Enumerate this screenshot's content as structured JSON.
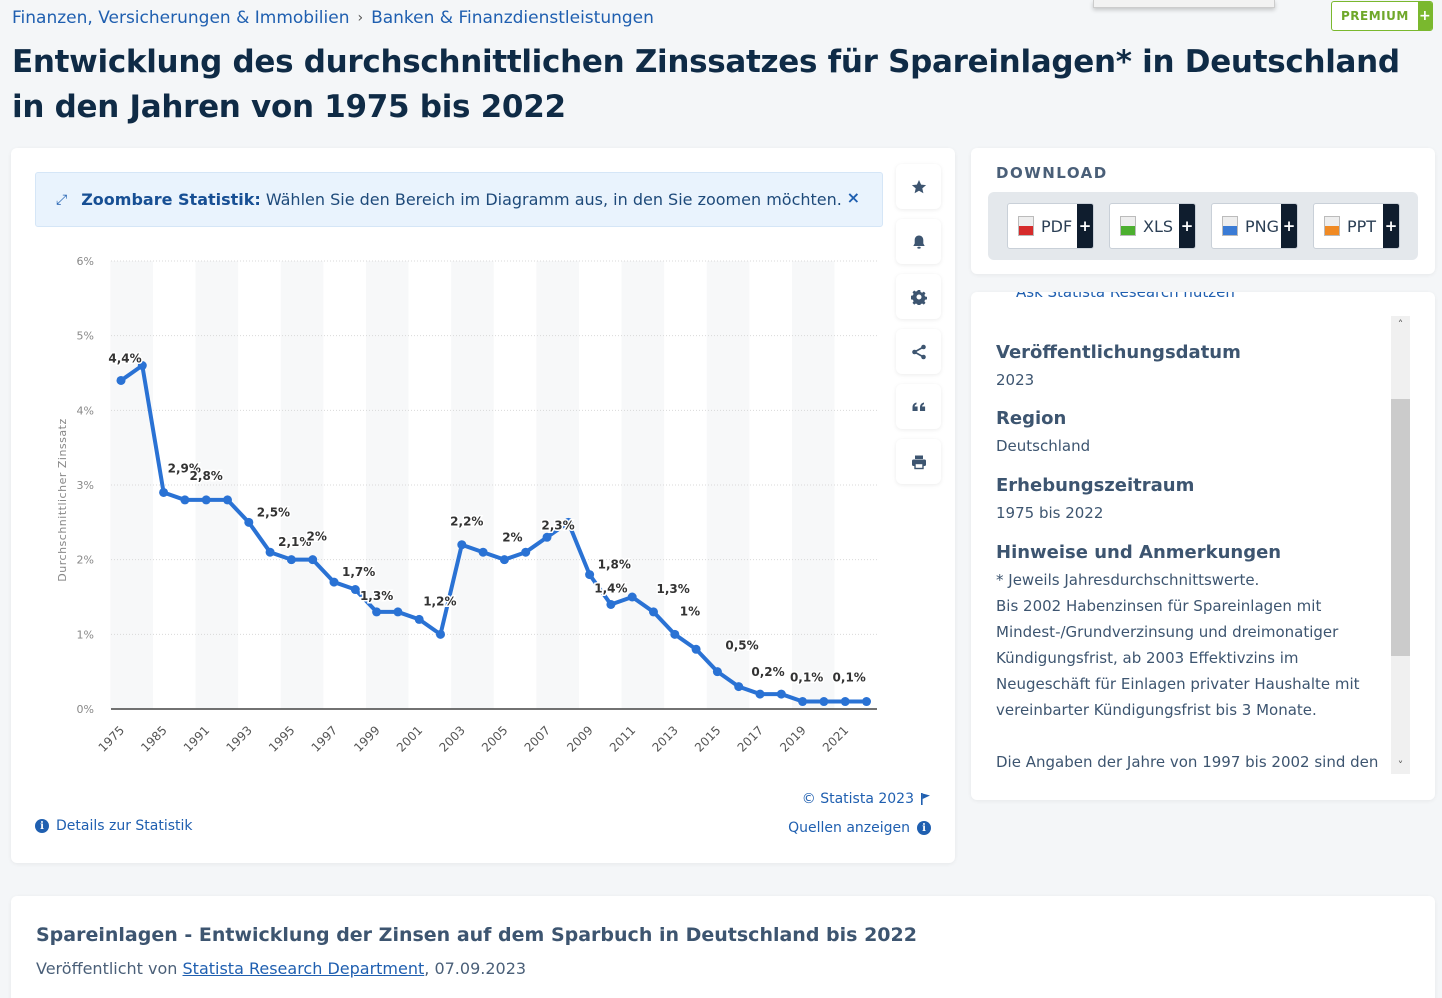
{
  "breadcrumb": {
    "items": [
      "Finanzen, Versicherungen & Immobilien",
      "Banken & Finanzdienstleistungen"
    ],
    "separator": "›"
  },
  "premium": {
    "label": "PREMIUM",
    "plus": "+"
  },
  "page_title": "Entwicklung des durchschnittlichen Zinssatzes für Spareinlagen* in Deutschland in den Jahren von 1975 bis 2022",
  "zoom_banner": {
    "bold": "Zoombare Statistik:",
    "text": "Wählen Sie den Bereich im Diagramm aus, in den Sie zoomen möchten.",
    "close": "×"
  },
  "chart_footer": {
    "details": "Details zur Statistik",
    "copyright": "© Statista 2023",
    "sources": "Quellen anzeigen"
  },
  "toolbar": [
    "star-icon",
    "bell-icon",
    "gear-icon",
    "share-icon",
    "quote-icon",
    "print-icon"
  ],
  "download": {
    "title": "DOWNLOAD",
    "buttons": [
      {
        "label": "PDF",
        "color": "#d62b2b"
      },
      {
        "label": "XLS",
        "color": "#4caf2f"
      },
      {
        "label": "PNG",
        "color": "#3a7bd5"
      },
      {
        "label": "PPT",
        "color": "#f08a24"
      }
    ]
  },
  "meta": {
    "cut_link": "Ask Statista Research nutzen",
    "items": [
      {
        "label": "Veröffentlichungsdatum",
        "value": "2023"
      },
      {
        "label": "Region",
        "value": "Deutschland"
      },
      {
        "label": "Erhebungszeitraum",
        "value": "1975 bis 2022"
      },
      {
        "label": "Hinweise und Anmerkungen",
        "value": "* Jeweils Jahresdurchschnittswerte.\nBis 2002 Habenzinsen für Spareinlagen mit Mindest-/Grundverzinsung und dreimonatiger Kündigungsfrist, ab 2003 Effektivzins im Neugeschäft für Einlagen privater Haushalte mit vereinbarter Kündigungsfrist bis 3 Monate.\n\nDie Angaben der Jahre von 1997 bis 2002 sind den"
      }
    ]
  },
  "bottom": {
    "title": "Spareinlagen - Entwicklung der Zinsen auf dem Sparbuch in Deutschland bis 2022",
    "published_prefix": "Veröffentlicht von ",
    "publisher": "Statista Research Department",
    "date_suffix": ", 07.09.2023"
  },
  "chart_data": {
    "type": "line",
    "title": "Entwicklung des durchschnittlichen Zinssatzes für Spareinlagen* in Deutschland in den Jahren von 1975 bis 2022",
    "xlabel": "",
    "ylabel": "Durchschnittlicher Zinssatz",
    "ylim": [
      0,
      6
    ],
    "yticks": [
      "0%",
      "1%",
      "2%",
      "3%",
      "4%",
      "5%",
      "6%"
    ],
    "grid": true,
    "line_color": "#2a72d4",
    "x": [
      "1975",
      "1980",
      "1985",
      "1990",
      "1991",
      "1992",
      "1993",
      "1994",
      "1995",
      "1996",
      "1997",
      "1998",
      "1999",
      "2000",
      "2001",
      "2002",
      "2003",
      "2004",
      "2005",
      "2006",
      "2007",
      "2008",
      "2009",
      "2010",
      "2011",
      "2012",
      "2013",
      "2014",
      "2015",
      "2016",
      "2017",
      "2018",
      "2019",
      "2020",
      "2021",
      "2022"
    ],
    "xtick_labels": [
      "1975",
      "1985",
      "1991",
      "1993",
      "1995",
      "1997",
      "1999",
      "2001",
      "2003",
      "2005",
      "2007",
      "2009",
      "2011",
      "2013",
      "2015",
      "2017",
      "2019",
      "2021"
    ],
    "series": [
      {
        "name": "Durchschnittlicher Zinssatz",
        "values": [
          4.4,
          4.6,
          2.9,
          2.8,
          2.8,
          2.8,
          2.5,
          2.1,
          2.0,
          2.0,
          1.7,
          1.6,
          1.3,
          1.3,
          1.2,
          1.0,
          2.2,
          2.1,
          2.0,
          2.1,
          2.3,
          2.5,
          1.8,
          1.4,
          1.5,
          1.3,
          1.0,
          0.8,
          0.5,
          0.3,
          0.2,
          0.2,
          0.1,
          0.1,
          0.1,
          0.1
        ]
      }
    ],
    "data_labels": [
      {
        "x": "1975",
        "text": "4,4%"
      },
      {
        "x": "1985",
        "text": "2,9%"
      },
      {
        "x": "1991",
        "text": "2,8%"
      },
      {
        "x": "1993",
        "text": "2,5%"
      },
      {
        "x": "1994",
        "text": "2,1%"
      },
      {
        "x": "1996",
        "text": "2%"
      },
      {
        "x": "1997",
        "text": "1,7%"
      },
      {
        "x": "1999",
        "text": "1,3%"
      },
      {
        "x": "2001",
        "text": "1,2%"
      },
      {
        "x": "2003",
        "text": "2,2%"
      },
      {
        "x": "2005",
        "text": "2%"
      },
      {
        "x": "2007",
        "text": "2,3%"
      },
      {
        "x": "2009",
        "text": "1,8%"
      },
      {
        "x": "2010",
        "text": "1,4%"
      },
      {
        "x": "2012",
        "text": "1,3%"
      },
      {
        "x": "2013",
        "text": "1%"
      },
      {
        "x": "2015",
        "text": "0,5%"
      },
      {
        "x": "2017",
        "text": "0,2%"
      },
      {
        "x": "2019",
        "text": "0,1%"
      },
      {
        "x": "2021",
        "text": "0,1%"
      }
    ]
  }
}
